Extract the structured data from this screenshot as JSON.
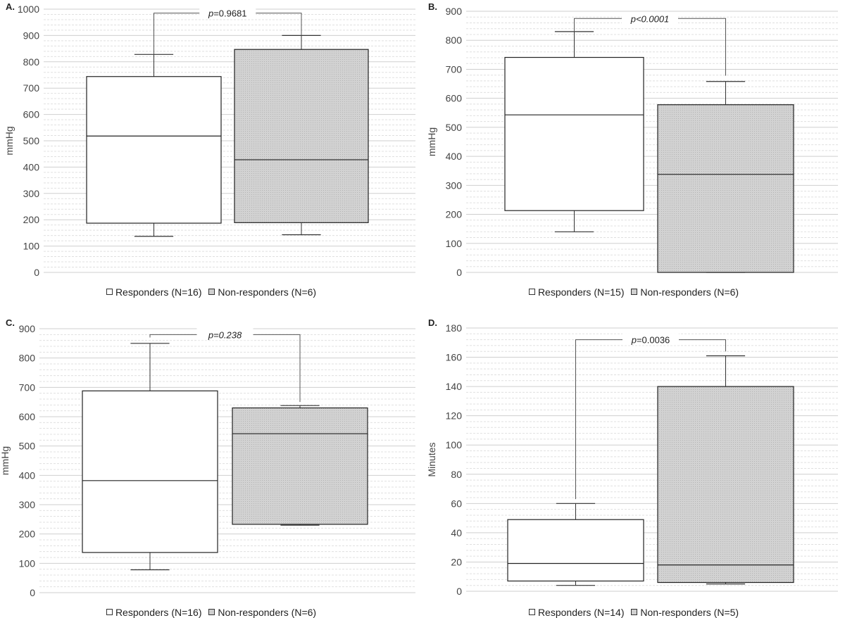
{
  "chart_data": [
    {
      "type": "boxplot",
      "panel_label": "A.",
      "ylabel": "mmHg",
      "ylim": [
        0,
        1000
      ],
      "yticks": [
        0,
        100,
        200,
        300,
        400,
        500,
        600,
        700,
        800,
        900,
        1000
      ],
      "p_prefix": "p",
      "p_rest": "=0.9681",
      "p_italic_all": false,
      "groups": [
        {
          "name": "Responders (N=16)",
          "fill": "#ffffff",
          "min": 137,
          "q1": 187,
          "median": 518,
          "q3": 744,
          "max": 828
        },
        {
          "name": "Non-responders (N=6)",
          "fill": "#cfcfcf",
          "min": 143,
          "q1": 189,
          "median": 428,
          "q3": 847,
          "max": 900
        }
      ],
      "bracket_y": [
        828,
        985,
        985,
        900
      ]
    },
    {
      "type": "boxplot",
      "panel_label": "B.",
      "ylabel": "mmHg",
      "ylim": [
        0,
        900
      ],
      "yticks": [
        0,
        100,
        200,
        300,
        400,
        500,
        600,
        700,
        800,
        900
      ],
      "p_prefix": "p",
      "p_rest": "<0.0001",
      "p_italic_all": true,
      "groups": [
        {
          "name": "Responders (N=15)",
          "fill": "#ffffff",
          "min": 140,
          "q1": 213,
          "median": 543,
          "q3": 741,
          "max": 830
        },
        {
          "name": "Non-responders (N=6)",
          "fill": "#cfcfcf",
          "min": 0,
          "q1": 0,
          "median": 338,
          "q3": 578,
          "max": 658
        }
      ],
      "bracket_y": [
        830,
        875,
        875,
        678
      ]
    },
    {
      "type": "boxplot",
      "panel_label": "C.",
      "ylabel": "mmHg",
      "ylim": [
        0,
        900
      ],
      "yticks": [
        0,
        100,
        200,
        300,
        400,
        500,
        600,
        700,
        800,
        900
      ],
      "p_prefix": "p",
      "p_rest": "=0.238",
      "p_italic_all": true,
      "groups": [
        {
          "name": "Responders (N=16)",
          "fill": "#ffffff",
          "min": 78,
          "q1": 137,
          "median": 382,
          "q3": 688,
          "max": 850
        },
        {
          "name": "Non-responders (N=6)",
          "fill": "#cfcfcf",
          "min": 230,
          "q1": 233,
          "median": 542,
          "q3": 630,
          "max": 638
        }
      ],
      "bracket_y": [
        870,
        880,
        880,
        650
      ]
    },
    {
      "type": "boxplot",
      "panel_label": "D.",
      "ylabel": "Minutes",
      "ylim": [
        0,
        180
      ],
      "yticks": [
        0,
        20,
        40,
        60,
        80,
        100,
        120,
        140,
        160,
        180
      ],
      "p_prefix": "p",
      "p_rest": "=0.0036",
      "p_italic_all": false,
      "groups": [
        {
          "name": "Responders (N=14)",
          "fill": "#ffffff",
          "min": 4,
          "q1": 7,
          "median": 19,
          "q3": 49,
          "max": 60
        },
        {
          "name": "Non-responders (N=5)",
          "fill": "#cfcfcf",
          "min": 5,
          "q1": 6,
          "median": 18,
          "q3": 140,
          "max": 161
        }
      ],
      "bracket_y": [
        63,
        172,
        172,
        164
      ]
    }
  ]
}
